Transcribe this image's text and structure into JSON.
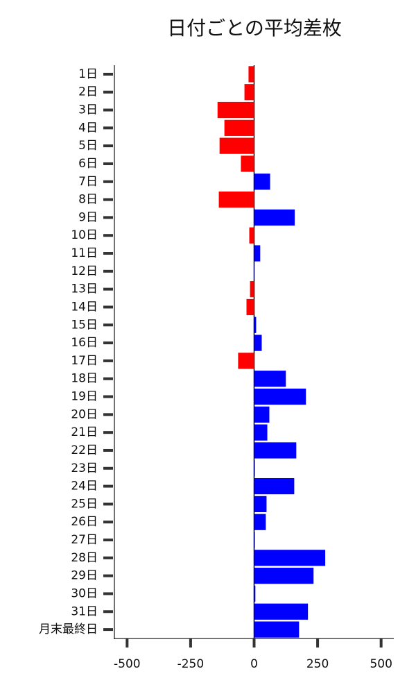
{
  "chart_data": {
    "type": "barh",
    "title": "日付ごとの平均差枚",
    "categories": [
      "1日",
      "2日",
      "3日",
      "4日",
      "5日",
      "6日",
      "7日",
      "8日",
      "9日",
      "10日",
      "11日",
      "12日",
      "13日",
      "14日",
      "15日",
      "16日",
      "17日",
      "18日",
      "19日",
      "20日",
      "21日",
      "22日",
      "23日",
      "24日",
      "25日",
      "26日",
      "27日",
      "28日",
      "29日",
      "30日",
      "31日",
      "月末最終日"
    ],
    "values": [
      -22,
      -38,
      -144,
      -117,
      -136,
      -52,
      63,
      -139,
      160,
      -19,
      24,
      1,
      -16,
      -30,
      8,
      30,
      -63,
      125,
      204,
      60,
      52,
      166,
      3,
      158,
      49,
      46,
      3,
      280,
      234,
      5,
      212,
      177
    ],
    "colors": {
      "positive": "#0000ff",
      "negative": "#ff0000"
    },
    "xlim": [
      -550,
      550
    ],
    "xticks": [
      -500,
      -250,
      0,
      250,
      500
    ],
    "zero_line": true
  }
}
